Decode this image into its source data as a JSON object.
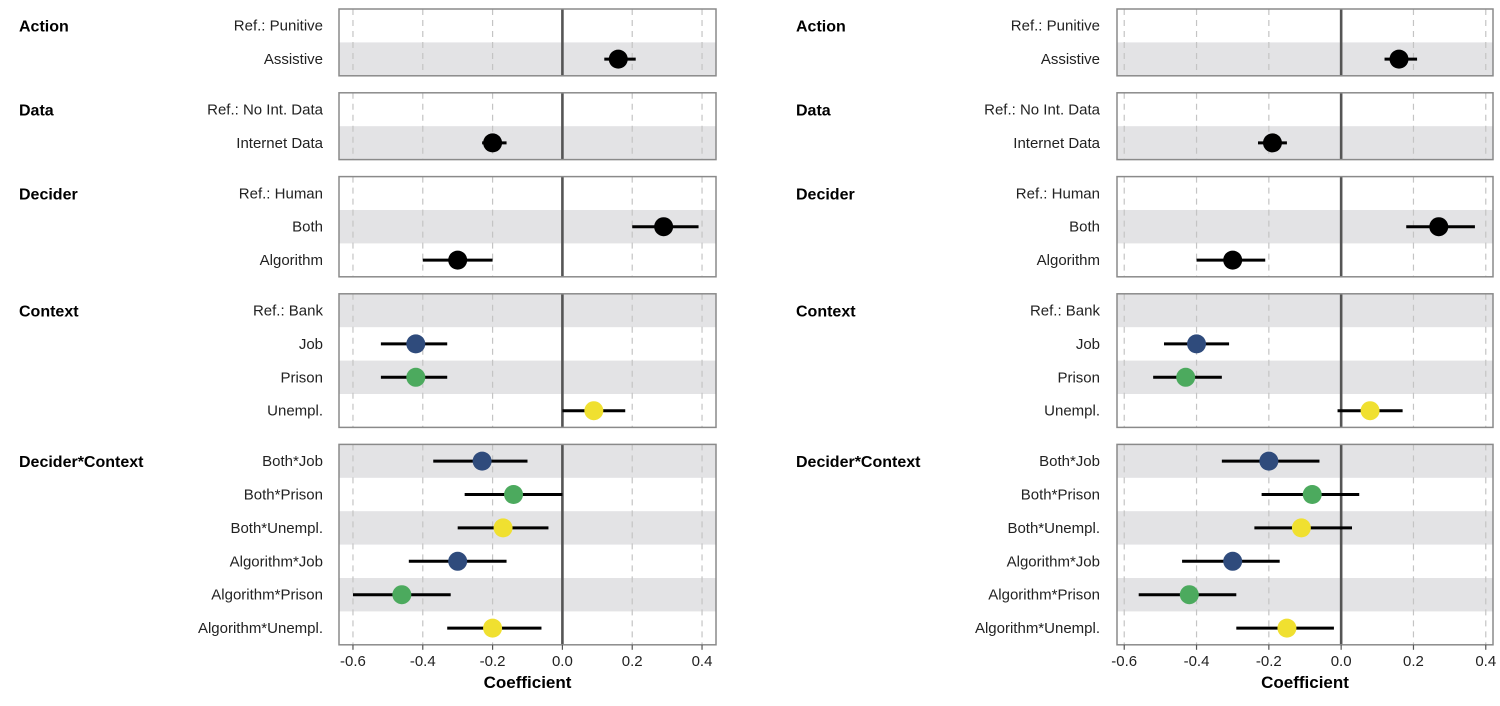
{
  "chart_data": [
    {
      "type": "scatter",
      "variant": "coefficient-plot",
      "xlabel": "Coefficient",
      "xlim": [
        -0.64,
        0.44
      ],
      "x_ticks": [
        -0.6,
        -0.4,
        -0.2,
        0.0,
        0.2,
        0.4
      ],
      "x_tick_labels": [
        "-0.6",
        "-0.4",
        "-0.2",
        "0.0",
        "0.2",
        "0.4"
      ],
      "reference_line_x": 0,
      "grid": "vertical-dashed",
      "row_banding": "alternating-grey",
      "panels": [
        {
          "label": "Action",
          "rows": [
            {
              "label": "Ref.: Punitive",
              "estimate": null,
              "low": null,
              "high": null,
              "color": null
            },
            {
              "label": "Assistive",
              "estimate": 0.16,
              "low": 0.12,
              "high": 0.21,
              "color": "#000000"
            }
          ]
        },
        {
          "label": "Data",
          "rows": [
            {
              "label": "Ref.: No Int. Data",
              "estimate": null,
              "low": null,
              "high": null,
              "color": null
            },
            {
              "label": "Internet Data",
              "estimate": -0.2,
              "low": -0.23,
              "high": -0.16,
              "color": "#000000"
            }
          ]
        },
        {
          "label": "Decider",
          "rows": [
            {
              "label": "Ref.: Human",
              "estimate": null,
              "low": null,
              "high": null,
              "color": null
            },
            {
              "label": "Both",
              "estimate": 0.29,
              "low": 0.2,
              "high": 0.39,
              "color": "#000000"
            },
            {
              "label": "Algorithm",
              "estimate": -0.3,
              "low": -0.4,
              "high": -0.2,
              "color": "#000000"
            }
          ]
        },
        {
          "label": "Context",
          "rows": [
            {
              "label": "Ref.: Bank",
              "estimate": null,
              "low": null,
              "high": null,
              "color": null
            },
            {
              "label": "Job",
              "estimate": -0.42,
              "low": -0.52,
              "high": -0.33,
              "color": "#2f4b7c"
            },
            {
              "label": "Prison",
              "estimate": -0.42,
              "low": -0.52,
              "high": -0.33,
              "color": "#4caa5e"
            },
            {
              "label": "Unempl.",
              "estimate": 0.09,
              "low": 0.0,
              "high": 0.18,
              "color": "#f0e030"
            }
          ]
        },
        {
          "label": "Decider*Context",
          "rows": [
            {
              "label": "Both*Job",
              "estimate": -0.23,
              "low": -0.37,
              "high": -0.1,
              "color": "#2f4b7c"
            },
            {
              "label": "Both*Prison",
              "estimate": -0.14,
              "low": -0.28,
              "high": 0.0,
              "color": "#4caa5e"
            },
            {
              "label": "Both*Unempl.",
              "estimate": -0.17,
              "low": -0.3,
              "high": -0.04,
              "color": "#f0e030"
            },
            {
              "label": "Algorithm*Job",
              "estimate": -0.3,
              "low": -0.44,
              "high": -0.16,
              "color": "#2f4b7c"
            },
            {
              "label": "Algorithm*Prison",
              "estimate": -0.46,
              "low": -0.6,
              "high": -0.32,
              "color": "#4caa5e"
            },
            {
              "label": "Algorithm*Unempl.",
              "estimate": -0.2,
              "low": -0.33,
              "high": -0.06,
              "color": "#f0e030"
            }
          ]
        }
      ]
    },
    {
      "type": "scatter",
      "variant": "coefficient-plot",
      "xlabel": "Coefficient",
      "xlim": [
        -0.62,
        0.42
      ],
      "x_ticks": [
        -0.6,
        -0.4,
        -0.2,
        0.0,
        0.2,
        0.4
      ],
      "x_tick_labels": [
        "-0.6",
        "-0.4",
        "-0.2",
        "0.0",
        "0.2",
        "0.4"
      ],
      "reference_line_x": 0,
      "grid": "vertical-dashed",
      "row_banding": "alternating-grey",
      "panels": [
        {
          "label": "Action",
          "rows": [
            {
              "label": "Ref.: Punitive",
              "estimate": null,
              "low": null,
              "high": null,
              "color": null
            },
            {
              "label": "Assistive",
              "estimate": 0.16,
              "low": 0.12,
              "high": 0.21,
              "color": "#000000"
            }
          ]
        },
        {
          "label": "Data",
          "rows": [
            {
              "label": "Ref.: No Int. Data",
              "estimate": null,
              "low": null,
              "high": null,
              "color": null
            },
            {
              "label": "Internet Data",
              "estimate": -0.19,
              "low": -0.23,
              "high": -0.15,
              "color": "#000000"
            }
          ]
        },
        {
          "label": "Decider",
          "rows": [
            {
              "label": "Ref.: Human",
              "estimate": null,
              "low": null,
              "high": null,
              "color": null
            },
            {
              "label": "Both",
              "estimate": 0.27,
              "low": 0.18,
              "high": 0.37,
              "color": "#000000"
            },
            {
              "label": "Algorithm",
              "estimate": -0.3,
              "low": -0.4,
              "high": -0.21,
              "color": "#000000"
            }
          ]
        },
        {
          "label": "Context",
          "rows": [
            {
              "label": "Ref.: Bank",
              "estimate": null,
              "low": null,
              "high": null,
              "color": null
            },
            {
              "label": "Job",
              "estimate": -0.4,
              "low": -0.49,
              "high": -0.31,
              "color": "#2f4b7c"
            },
            {
              "label": "Prison",
              "estimate": -0.43,
              "low": -0.52,
              "high": -0.33,
              "color": "#4caa5e"
            },
            {
              "label": "Unempl.",
              "estimate": 0.08,
              "low": -0.01,
              "high": 0.17,
              "color": "#f0e030"
            }
          ]
        },
        {
          "label": "Decider*Context",
          "rows": [
            {
              "label": "Both*Job",
              "estimate": -0.2,
              "low": -0.33,
              "high": -0.06,
              "color": "#2f4b7c"
            },
            {
              "label": "Both*Prison",
              "estimate": -0.08,
              "low": -0.22,
              "high": 0.05,
              "color": "#4caa5e"
            },
            {
              "label": "Both*Unempl.",
              "estimate": -0.11,
              "low": -0.24,
              "high": 0.03,
              "color": "#f0e030"
            },
            {
              "label": "Algorithm*Job",
              "estimate": -0.3,
              "low": -0.44,
              "high": -0.17,
              "color": "#2f4b7c"
            },
            {
              "label": "Algorithm*Prison",
              "estimate": -0.42,
              "low": -0.56,
              "high": -0.29,
              "color": "#4caa5e"
            },
            {
              "label": "Algorithm*Unempl.",
              "estimate": -0.15,
              "low": -0.29,
              "high": -0.02,
              "color": "#f0e030"
            }
          ]
        }
      ]
    }
  ]
}
